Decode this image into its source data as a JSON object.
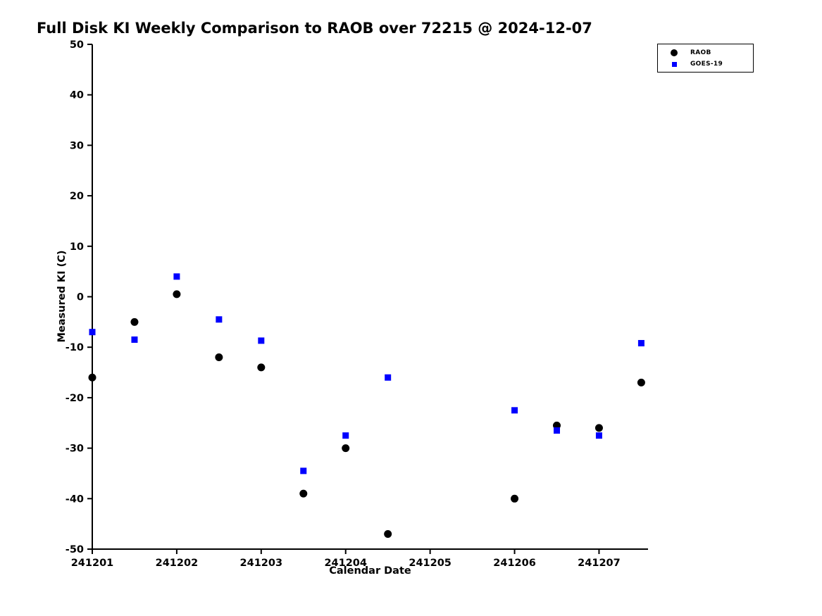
{
  "chart_data": {
    "type": "scatter",
    "title": "Full Disk KI Weekly Comparison to RAOB over 72215 @ 2024-12-07",
    "xlabel": "Calendar Date",
    "ylabel": "Measured KI (C)",
    "xlim": [
      241201,
      241207.58
    ],
    "ylim": [
      -50,
      50
    ],
    "xticks": [
      241201,
      241202,
      241203,
      241204,
      241205,
      241206,
      241207
    ],
    "yticks": [
      -50,
      -40,
      -30,
      -20,
      -10,
      0,
      10,
      20,
      30,
      40,
      50
    ],
    "grid": false,
    "legend_position": "top-right-outside",
    "series": [
      {
        "name": "RAOB",
        "marker": "circle",
        "color": "#000000",
        "points": [
          [
            241201.0,
            -16
          ],
          [
            241201.5,
            -5
          ],
          [
            241202.0,
            0.5
          ],
          [
            241202.5,
            -12
          ],
          [
            241203.0,
            -14
          ],
          [
            241203.5,
            -39
          ],
          [
            241204.0,
            -30
          ],
          [
            241204.5,
            -47
          ],
          [
            241206.0,
            -40
          ],
          [
            241206.5,
            -25.5
          ],
          [
            241207.0,
            -26
          ],
          [
            241207.5,
            -17
          ]
        ]
      },
      {
        "name": "GOES-19",
        "marker": "square",
        "color": "#0000ff",
        "points": [
          [
            241201.0,
            -7
          ],
          [
            241201.5,
            -8.5
          ],
          [
            241202.0,
            4
          ],
          [
            241202.5,
            -4.5
          ],
          [
            241203.0,
            -8.7
          ],
          [
            241203.5,
            -34.5
          ],
          [
            241204.0,
            -27.5
          ],
          [
            241204.5,
            -16
          ],
          [
            241206.0,
            -22.5
          ],
          [
            241206.5,
            -26.5
          ],
          [
            241207.0,
            -27.5
          ],
          [
            241207.5,
            -9.2
          ]
        ]
      }
    ]
  }
}
